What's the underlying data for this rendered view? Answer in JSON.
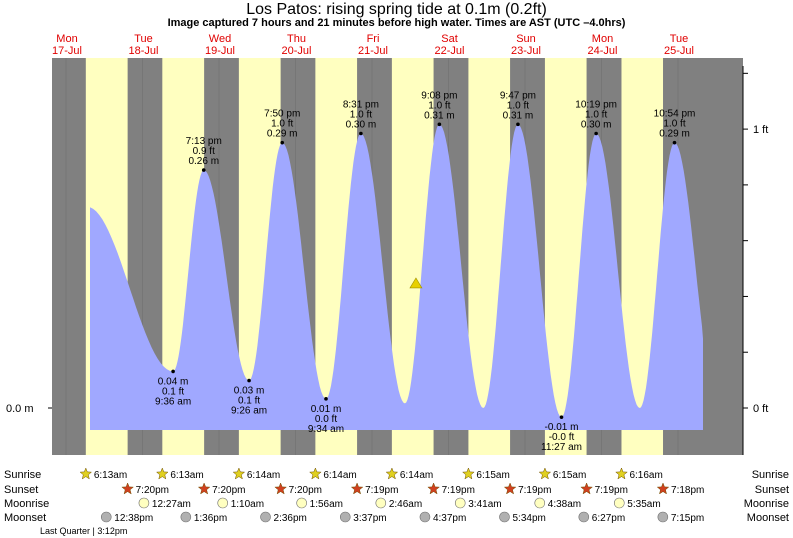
{
  "chart_data": {
    "type": "area",
    "title": "Los Patos: rising  spring tide at 0.1m (0.2ft)",
    "subtitle": "Image captured 7 hours and 21 minutes before high water. Times are AST (UTC –4.0hrs)",
    "days": [
      {
        "dow": "Mon",
        "date": "17-Jul"
      },
      {
        "dow": "Tue",
        "date": "18-Jul"
      },
      {
        "dow": "Wed",
        "date": "19-Jul"
      },
      {
        "dow": "Thu",
        "date": "20-Jul"
      },
      {
        "dow": "Fri",
        "date": "21-Jul"
      },
      {
        "dow": "Sat",
        "date": "22-Jul"
      },
      {
        "dow": "Sun",
        "date": "23-Jul"
      },
      {
        "dow": "Mon",
        "date": "24-Jul"
      },
      {
        "dow": "Tue",
        "date": "25-Jul"
      }
    ],
    "left_axis": {
      "label": "0.0 m",
      "value_m": 0.0
    },
    "right_axis": [
      {
        "label": "0 ft",
        "value_ft": 0
      },
      {
        "label": "1 ft",
        "value_ft": 1
      }
    ],
    "x_range": [
      "2023-07-17 00:00",
      "2023-07-25 00:00"
    ],
    "y_range_m": [
      -0.08,
      0.38
    ],
    "series": {
      "tides": [
        {
          "t": "2023-07-17 01:10",
          "h": 0.07
        },
        {
          "t": "2023-07-17 06:33",
          "h": 0.22
        },
        {
          "t": "2023-07-18 09:36",
          "h": 0.04,
          "low": true,
          "labels": [
            "0.04 m",
            "0.1 ft",
            "9:36 am"
          ]
        },
        {
          "t": "2023-07-18 19:13",
          "h": 0.26,
          "high": true,
          "labels": [
            "7:13 pm",
            "0.9 ft",
            "0.26 m"
          ]
        },
        {
          "t": "2023-07-19 09:26",
          "h": 0.03,
          "low": true,
          "labels": [
            "0.03 m",
            "0.1 ft",
            "9:26 am"
          ]
        },
        {
          "t": "2023-07-19 19:50",
          "h": 0.29,
          "high": true,
          "labels": [
            "7:50 pm",
            "1.0 ft",
            "0.29 m"
          ]
        },
        {
          "t": "2023-07-20 09:34",
          "h": 0.01,
          "low": true,
          "labels": [
            "0.01 m",
            "0.0 ft",
            "9:34 am"
          ]
        },
        {
          "t": "2023-07-20 20:31",
          "h": 0.3,
          "high": true,
          "labels": [
            "8:31 pm",
            "1.0 ft",
            "0.30 m"
          ]
        },
        {
          "t": "2023-07-21 10:20",
          "h": 0.005
        },
        {
          "t": "2023-07-21 21:08",
          "h": 0.31,
          "high": true,
          "labels": [
            "9:08 pm",
            "1.0 ft",
            "0.31 m"
          ]
        },
        {
          "t": "2023-07-22 10:55",
          "h": 0.0
        },
        {
          "t": "2023-07-22 21:47",
          "h": 0.31,
          "high": true,
          "labels": [
            "9:47 pm",
            "1.0 ft",
            "0.31 m"
          ]
        },
        {
          "t": "2023-07-23 11:27",
          "h": -0.01,
          "low": true,
          "labels": [
            "-0.01 m",
            "-0.0 ft",
            "11:27 am"
          ]
        },
        {
          "t": "2023-07-23 22:19",
          "h": 0.3,
          "high": true,
          "labels": [
            "10:19 pm",
            "1.0 ft",
            "0.30 m"
          ]
        },
        {
          "t": "2023-07-24 12:00",
          "h": 0.0
        },
        {
          "t": "2023-07-24 22:54",
          "h": 0.29,
          "high": true,
          "labels": [
            "10:54 pm",
            "1.0 ft",
            "0.29 m"
          ]
        },
        {
          "t": "2023-07-25 12:20",
          "h": 0.01
        },
        {
          "t": "2023-07-25 14:00",
          "h": 0.015
        }
      ]
    },
    "current_marker": {
      "t": "2023-07-21 13:47",
      "h": 0.035
    },
    "rows": [
      {
        "label": "Sunrise",
        "icon": "sun-icon",
        "items": [
          "6:13am",
          "6:13am",
          "6:14am",
          "6:14am",
          "6:14am",
          "6:15am",
          "6:15am",
          "6:16am"
        ]
      },
      {
        "label": "Sunset",
        "icon": "sunset-icon",
        "items": [
          "7:20pm",
          "7:20pm",
          "7:20pm",
          "7:19pm",
          "7:19pm",
          "7:19pm",
          "7:19pm",
          "7:18pm"
        ]
      },
      {
        "label": "Moonrise",
        "icon": "moonrise-icon",
        "items": [
          "12:27am",
          "1:10am",
          "1:56am",
          "2:46am",
          "3:41am",
          "4:38am",
          "5:35am"
        ]
      },
      {
        "label": "Moonset",
        "icon": "moonset-icon",
        "items": [
          "12:38pm",
          "1:36pm",
          "2:36pm",
          "3:37pm",
          "4:37pm",
          "5:34pm",
          "6:27pm",
          "7:15pm"
        ]
      }
    ],
    "moon_phase": "Last Quarter | 3:12pm",
    "colors": {
      "night": "#808080",
      "day": "#ffffc0",
      "water": "#a0a8ff",
      "day_label": "#e00000",
      "sun": "#e0d020",
      "sunset": "#d04020",
      "moonrise": "#ffffc0",
      "moonset": "#b0b0b0",
      "marker": "#e8d000"
    }
  }
}
